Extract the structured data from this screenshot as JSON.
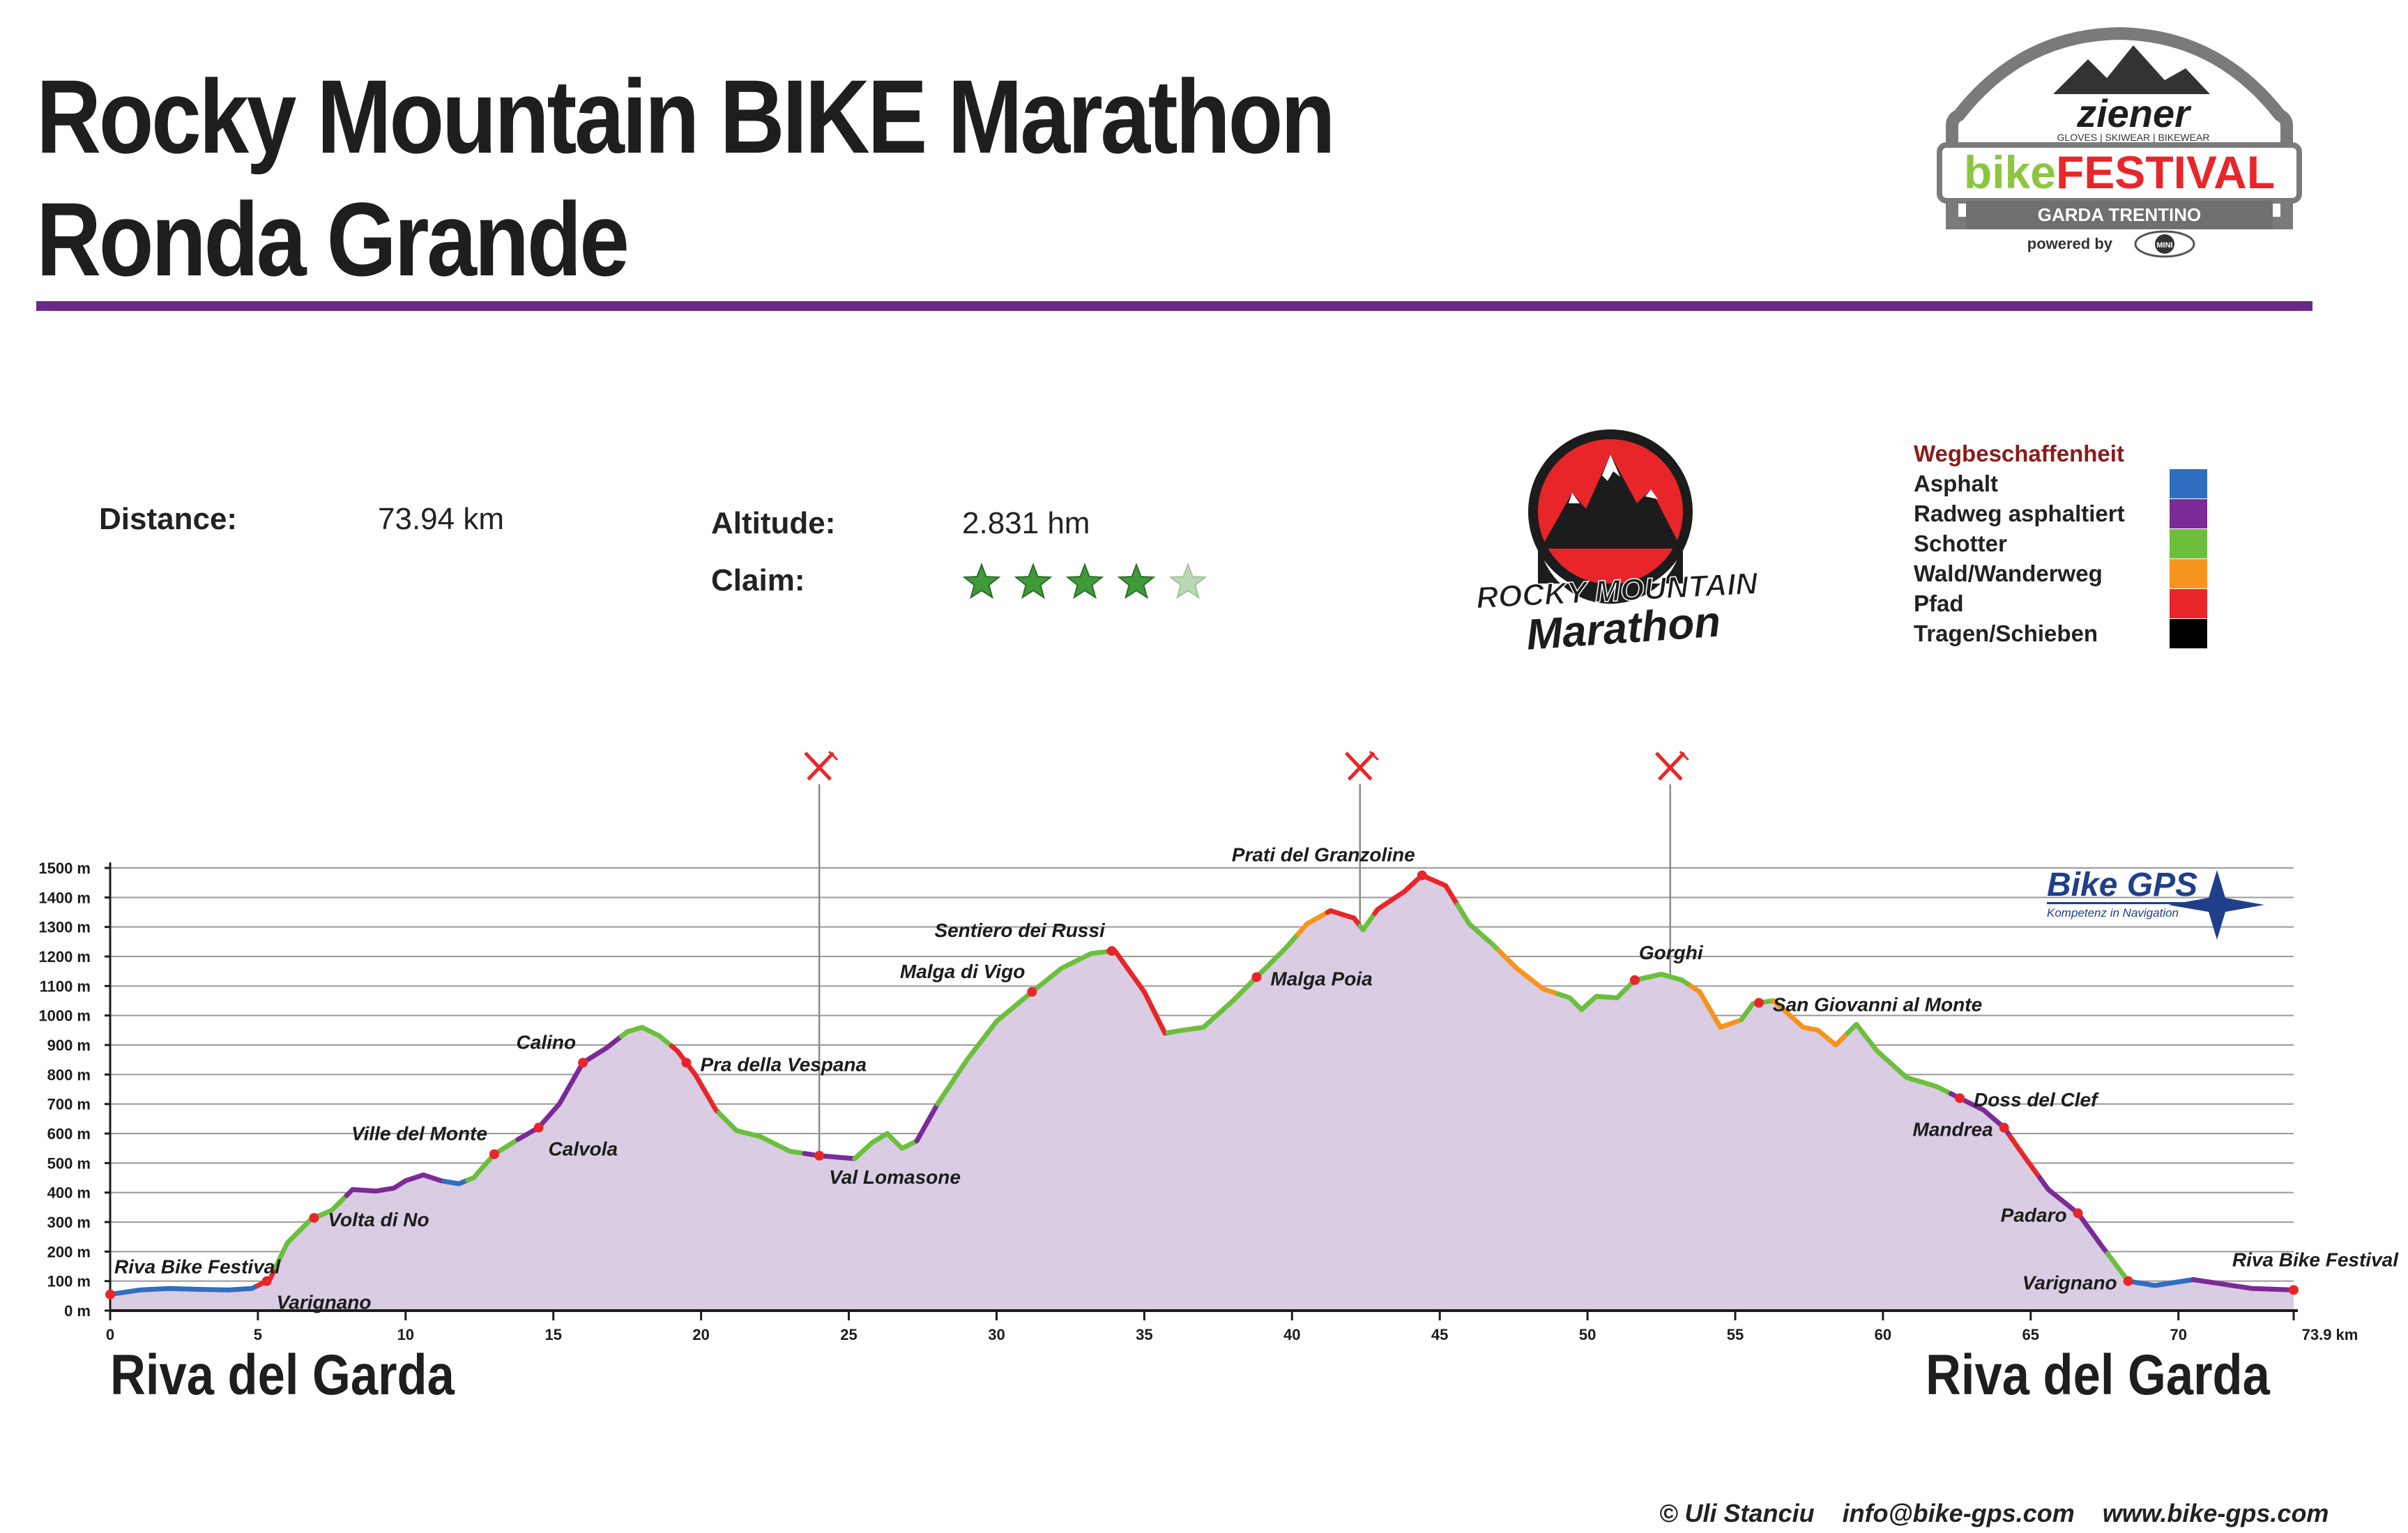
{
  "header": {
    "title_line1": "Rocky Mountain BIKE Marathon",
    "title_line2": "Ronda Grande"
  },
  "stats": {
    "distance_label": "Distance:",
    "distance_value": "73.94 km",
    "altitude_label": "Altitude:",
    "altitude_value": "2.831 hm",
    "claim_label": "Claim:",
    "claim_rating": 4,
    "claim_max": 5
  },
  "festival_logo": {
    "brand": "ziener",
    "brand_sub": "GLOVES | SKIWEAR | BIKEWEAR",
    "bike": "bike",
    "festival": "FESTIVAL",
    "region": "GARDA TRENTINO",
    "powered_by": "powered by",
    "sponsor": "MINI"
  },
  "marathon_logo": {
    "line1": "ROCKY MOUNTAIN",
    "line2": "Marathon"
  },
  "gps_logo": {
    "name": "Bike GPS",
    "tagline": "Kompetenz in Navigation"
  },
  "legend": {
    "title": "Wegbeschaffenheit",
    "items": [
      {
        "label": "Asphalt",
        "color": "#2f6fbf"
      },
      {
        "label": "Radweg asphaltiert",
        "color": "#7a2b96"
      },
      {
        "label": "Schotter",
        "color": "#6cbf3c"
      },
      {
        "label": "Wald/Wanderweg",
        "color": "#f7941d"
      },
      {
        "label": "Pfad",
        "color": "#e8262a"
      },
      {
        "label": "Tragen/Schieben",
        "color": "#000000"
      }
    ]
  },
  "places": {
    "start": "Riva del Garda",
    "finish": "Riva del Garda"
  },
  "footer": {
    "copyright": "© Uli Stanciu",
    "email": "info@bike-gps.com",
    "web": "www.bike-gps.com"
  },
  "chart_data": {
    "type": "area",
    "x_unit": "km",
    "y_unit": "m",
    "xlim": [
      0,
      73.9
    ],
    "ylim": [
      0,
      1500
    ],
    "x_ticks": [
      0,
      5,
      10,
      15,
      20,
      25,
      30,
      35,
      40,
      45,
      50,
      55,
      60,
      65,
      70
    ],
    "x_tick_labels": [
      "0",
      "5",
      "10",
      "15",
      "20",
      "25",
      "30",
      "35",
      "40",
      "45",
      "50",
      "55",
      "60",
      "65",
      "70"
    ],
    "x_end_label": "73.9 km",
    "y_ticks": [
      0,
      100,
      200,
      300,
      400,
      500,
      600,
      700,
      800,
      900,
      1000,
      1100,
      1200,
      1300,
      1400,
      1500
    ],
    "y_tick_labels": [
      "0 m",
      "100 m",
      "200 m",
      "300 m",
      "400 m",
      "500 m",
      "600 m",
      "700 m",
      "800 m",
      "900 m",
      "1000 m",
      "1100 m",
      "1200 m",
      "1300 m",
      "1400 m",
      "1500 m"
    ],
    "grid": true,
    "fill_color": "#d9cce3",
    "profile": [
      {
        "x": 0,
        "y": 55
      },
      {
        "x": 1,
        "y": 70
      },
      {
        "x": 2,
        "y": 75
      },
      {
        "x": 3,
        "y": 72
      },
      {
        "x": 4,
        "y": 70
      },
      {
        "x": 4.8,
        "y": 75
      },
      {
        "x": 5.4,
        "y": 105
      },
      {
        "x": 6,
        "y": 230
      },
      {
        "x": 6.8,
        "y": 310
      },
      {
        "x": 7.5,
        "y": 340
      },
      {
        "x": 8.2,
        "y": 410
      },
      {
        "x": 9,
        "y": 405
      },
      {
        "x": 9.6,
        "y": 415
      },
      {
        "x": 10,
        "y": 440
      },
      {
        "x": 10.6,
        "y": 460
      },
      {
        "x": 11.2,
        "y": 440
      },
      {
        "x": 11.8,
        "y": 430
      },
      {
        "x": 12.3,
        "y": 450
      },
      {
        "x": 13,
        "y": 530
      },
      {
        "x": 13.8,
        "y": 580
      },
      {
        "x": 14.5,
        "y": 620
      },
      {
        "x": 15.2,
        "y": 700
      },
      {
        "x": 16,
        "y": 840
      },
      {
        "x": 16.8,
        "y": 890
      },
      {
        "x": 17.5,
        "y": 945
      },
      {
        "x": 18,
        "y": 960
      },
      {
        "x": 18.6,
        "y": 930
      },
      {
        "x": 19.2,
        "y": 880
      },
      {
        "x": 19.8,
        "y": 800
      },
      {
        "x": 20.5,
        "y": 680
      },
      {
        "x": 21.2,
        "y": 610
      },
      {
        "x": 22,
        "y": 590
      },
      {
        "x": 23,
        "y": 540
      },
      {
        "x": 24,
        "y": 525
      },
      {
        "x": 25.2,
        "y": 515
      },
      {
        "x": 25.8,
        "y": 570
      },
      {
        "x": 26.3,
        "y": 600
      },
      {
        "x": 26.8,
        "y": 550
      },
      {
        "x": 27.3,
        "y": 575
      },
      {
        "x": 28,
        "y": 700
      },
      {
        "x": 29,
        "y": 850
      },
      {
        "x": 30,
        "y": 980
      },
      {
        "x": 31.2,
        "y": 1080
      },
      {
        "x": 32.2,
        "y": 1160
      },
      {
        "x": 33.2,
        "y": 1210
      },
      {
        "x": 34,
        "y": 1220
      },
      {
        "x": 35,
        "y": 1080
      },
      {
        "x": 35.7,
        "y": 940
      },
      {
        "x": 36.3,
        "y": 950
      },
      {
        "x": 37,
        "y": 960
      },
      {
        "x": 38,
        "y": 1050
      },
      {
        "x": 38.8,
        "y": 1130
      },
      {
        "x": 39.8,
        "y": 1230
      },
      {
        "x": 40.5,
        "y": 1310
      },
      {
        "x": 41.3,
        "y": 1355
      },
      {
        "x": 42.1,
        "y": 1330
      },
      {
        "x": 42.4,
        "y": 1290
      },
      {
        "x": 42.9,
        "y": 1360
      },
      {
        "x": 43.8,
        "y": 1420
      },
      {
        "x": 44.4,
        "y": 1475
      },
      {
        "x": 45.2,
        "y": 1440
      },
      {
        "x": 46,
        "y": 1310
      },
      {
        "x": 46.8,
        "y": 1240
      },
      {
        "x": 47.6,
        "y": 1160
      },
      {
        "x": 48.5,
        "y": 1090
      },
      {
        "x": 49.4,
        "y": 1060
      },
      {
        "x": 49.8,
        "y": 1020
      },
      {
        "x": 50.3,
        "y": 1065
      },
      {
        "x": 51,
        "y": 1060
      },
      {
        "x": 51.6,
        "y": 1120
      },
      {
        "x": 52.5,
        "y": 1140
      },
      {
        "x": 53.2,
        "y": 1120
      },
      {
        "x": 53.8,
        "y": 1080
      },
      {
        "x": 54.5,
        "y": 960
      },
      {
        "x": 55.2,
        "y": 985
      },
      {
        "x": 55.6,
        "y": 1040
      },
      {
        "x": 56.3,
        "y": 1050
      },
      {
        "x": 57.3,
        "y": 960
      },
      {
        "x": 57.8,
        "y": 950
      },
      {
        "x": 58.4,
        "y": 900
      },
      {
        "x": 59.1,
        "y": 970
      },
      {
        "x": 59.8,
        "y": 880
      },
      {
        "x": 60.8,
        "y": 790
      },
      {
        "x": 61.8,
        "y": 760
      },
      {
        "x": 62.6,
        "y": 720
      },
      {
        "x": 63.4,
        "y": 680
      },
      {
        "x": 64.1,
        "y": 620
      },
      {
        "x": 64.8,
        "y": 520
      },
      {
        "x": 65.6,
        "y": 410
      },
      {
        "x": 66.6,
        "y": 330
      },
      {
        "x": 67.4,
        "y": 220
      },
      {
        "x": 68.3,
        "y": 100
      },
      {
        "x": 69.2,
        "y": 85
      },
      {
        "x": 70.5,
        "y": 105
      },
      {
        "x": 71.5,
        "y": 90
      },
      {
        "x": 72.5,
        "y": 75
      },
      {
        "x": 73.9,
        "y": 70
      }
    ],
    "surface_segments": [
      {
        "from": 0,
        "to": 5.0,
        "surface": "Asphalt"
      },
      {
        "from": 5.0,
        "to": 5.6,
        "surface": "Pfad"
      },
      {
        "from": 5.6,
        "to": 8.0,
        "surface": "Schotter"
      },
      {
        "from": 8.0,
        "to": 11.3,
        "surface": "Radweg asphaltiert"
      },
      {
        "from": 11.3,
        "to": 12.1,
        "surface": "Asphalt"
      },
      {
        "from": 12.1,
        "to": 13.8,
        "surface": "Schotter"
      },
      {
        "from": 13.8,
        "to": 17.3,
        "surface": "Radweg asphaltiert"
      },
      {
        "from": 17.3,
        "to": 19.0,
        "surface": "Schotter"
      },
      {
        "from": 19.0,
        "to": 20.6,
        "surface": "Pfad"
      },
      {
        "from": 20.6,
        "to": 23.5,
        "surface": "Schotter"
      },
      {
        "from": 23.5,
        "to": 25.2,
        "surface": "Radweg asphaltiert"
      },
      {
        "from": 25.2,
        "to": 27.3,
        "surface": "Schotter"
      },
      {
        "from": 27.3,
        "to": 28.0,
        "surface": "Radweg asphaltiert"
      },
      {
        "from": 28.0,
        "to": 33.8,
        "surface": "Schotter"
      },
      {
        "from": 33.8,
        "to": 35.8,
        "surface": "Pfad"
      },
      {
        "from": 35.8,
        "to": 40.2,
        "surface": "Schotter"
      },
      {
        "from": 40.2,
        "to": 41.2,
        "surface": "Wald/Wanderweg"
      },
      {
        "from": 41.2,
        "to": 42.3,
        "surface": "Pfad"
      },
      {
        "from": 42.3,
        "to": 42.8,
        "surface": "Schotter"
      },
      {
        "from": 42.8,
        "to": 45.6,
        "surface": "Pfad"
      },
      {
        "from": 45.6,
        "to": 47.0,
        "surface": "Schotter"
      },
      {
        "from": 47.0,
        "to": 49.0,
        "surface": "Wald/Wanderweg"
      },
      {
        "from": 49.0,
        "to": 53.5,
        "surface": "Schotter"
      },
      {
        "from": 53.5,
        "to": 55.2,
        "surface": "Wald/Wanderweg"
      },
      {
        "from": 55.2,
        "to": 56.3,
        "surface": "Schotter"
      },
      {
        "from": 56.3,
        "to": 58.8,
        "surface": "Wald/Wanderweg"
      },
      {
        "from": 58.8,
        "to": 62.3,
        "surface": "Schotter"
      },
      {
        "from": 62.3,
        "to": 64.3,
        "surface": "Radweg asphaltiert"
      },
      {
        "from": 64.3,
        "to": 65.3,
        "surface": "Pfad"
      },
      {
        "from": 65.3,
        "to": 67.6,
        "surface": "Radweg asphaltiert"
      },
      {
        "from": 67.6,
        "to": 68.3,
        "surface": "Schotter"
      },
      {
        "from": 68.3,
        "to": 70.5,
        "surface": "Asphalt"
      },
      {
        "from": 70.5,
        "to": 73.9,
        "surface": "Radweg asphaltiert"
      }
    ],
    "waypoints": [
      {
        "name": "Riva Bike Festival",
        "x": 0,
        "label_side": "above-right"
      },
      {
        "name": "Varignano",
        "x": 5.3,
        "label_side": "below-right"
      },
      {
        "name": "Volta di No",
        "x": 6.9,
        "label_side": "right"
      },
      {
        "name": "Ville del Monte",
        "x": 13.0,
        "label_side": "above-left"
      },
      {
        "name": "Calvola",
        "x": 14.5,
        "label_side": "below-right"
      },
      {
        "name": "Calino",
        "x": 16.0,
        "label_side": "above-left"
      },
      {
        "name": "Pra della Vespana",
        "x": 19.5,
        "label_side": "right"
      },
      {
        "name": "Val Lomasone",
        "x": 24.0,
        "label_side": "below-right"
      },
      {
        "name": "Malga di Vigo",
        "x": 31.2,
        "label_side": "above-left"
      },
      {
        "name": "Sentiero dei Russi",
        "x": 33.9,
        "label_side": "above-left"
      },
      {
        "name": "Malga Poia",
        "x": 38.8,
        "label_side": "right"
      },
      {
        "name": "Prati del Granzoline",
        "x": 44.4,
        "label_side": "above-left"
      },
      {
        "name": "Gorghi",
        "x": 51.6,
        "label_side": "above-right"
      },
      {
        "name": "San Giovanni al Monte",
        "x": 55.8,
        "label_side": "right"
      },
      {
        "name": "Doss del Clef",
        "x": 62.6,
        "label_side": "right"
      },
      {
        "name": "Mandrea",
        "x": 64.1,
        "label_side": "left"
      },
      {
        "name": "Padaro",
        "x": 66.6,
        "label_side": "left"
      },
      {
        "name": "Varignano",
        "x": 68.3,
        "label_side": "left"
      },
      {
        "name": "Riva Bike Festival",
        "x": 73.9,
        "label_side": "above"
      }
    ],
    "food_stations_km": [
      24.0,
      42.3,
      52.8
    ]
  }
}
